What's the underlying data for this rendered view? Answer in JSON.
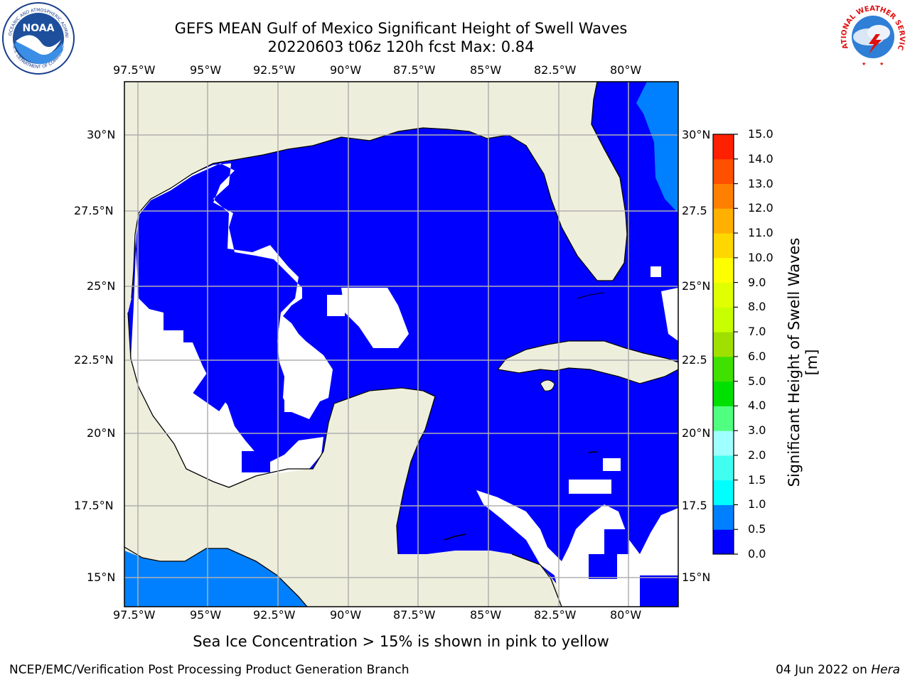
{
  "header": {
    "title_line1": "GEFS MEAN Gulf of Mexico Significant Height of Swell Waves",
    "title_line2": "20220603 t06z 120h fcst   Max: 0.84"
  },
  "logos": {
    "noaa_text": "NOAA",
    "noaa_ring_top": "NATIONAL OCEANIC AND ATMOSPHERIC ADMINISTRATION",
    "noaa_ring_bottom": "U.S. DEPARTMENT OF COMMERCE",
    "nws_ring": "NATIONAL WEATHER SERVICE"
  },
  "map": {
    "lon_ticks": [
      "97.5°W",
      "95°W",
      "92.5°W",
      "90°W",
      "87.5°W",
      "85°W",
      "82.5°W",
      "80°W"
    ],
    "lat_ticks_left": [
      "30°N",
      "27.5°N",
      "25°N",
      "22.5°N",
      "20°N",
      "17.5°N",
      "15°N"
    ],
    "lat_ticks_right": [
      "30°N",
      "27.5",
      "25°N",
      "22.5",
      "20°N",
      "17.5",
      "15°N"
    ],
    "land_color": "#eeeedc",
    "ocean_low_color": "#0000ff",
    "ocean_mid_color": "#0080ff",
    "no_data_color": "#ffffff",
    "grid_color": "#b0b0b0"
  },
  "colorbar": {
    "label": "Significant Height of Swell Waves [m]",
    "ticks": [
      "15.0",
      "14.0",
      "13.0",
      "12.0",
      "11.0",
      "10.0",
      "9.0",
      "8.0",
      "7.0",
      "6.0",
      "5.0",
      "4.0",
      "3.0",
      "2.0",
      "1.5",
      "1.0",
      "0.5",
      "0.0"
    ],
    "colors": [
      "#0000ff",
      "#0080ff",
      "#00ffff",
      "#40fff0",
      "#a0ffff",
      "#50ff80",
      "#00e000",
      "#40e000",
      "#a0e000",
      "#c8ff00",
      "#e0ff00",
      "#ffff00",
      "#ffd700",
      "#ffb000",
      "#ff8000",
      "#ff5000",
      "#ff2000"
    ]
  },
  "caption": "Sea Ice Concentration > 15% is shown in pink to yellow",
  "footer": {
    "left": "NCEP/EMC/Verification Post Processing Product Generation Branch",
    "date": "04 Jun 2022 on ",
    "host": "Hera"
  }
}
